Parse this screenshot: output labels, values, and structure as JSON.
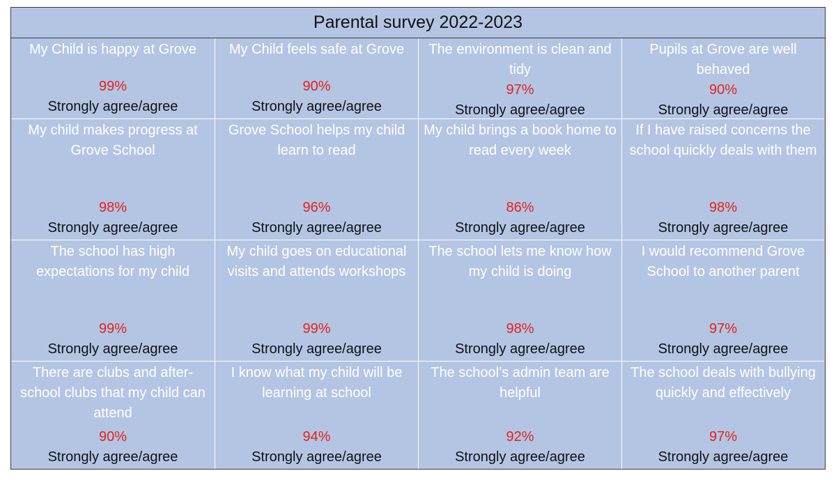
{
  "title": "Parental survey 2022-2023",
  "colors": {
    "cell_background": "#b4c5e4",
    "question_text": "#ffffff",
    "percent_text": "#e2231a",
    "answer_text": "#111111"
  },
  "items": [
    {
      "question": "My Child is happy at Grove",
      "percent": "99%",
      "answer": "Strongly agree/agree"
    },
    {
      "question": "My Child feels safe at Grove",
      "percent": "90%",
      "answer": "Strongly agree/agree"
    },
    {
      "question": "The environment is clean and tidy",
      "percent": "97%",
      "answer": "Strongly agree/agree"
    },
    {
      "question": "Pupils at Grove are well behaved",
      "percent": "90%",
      "answer": "Strongly agree/agree"
    },
    {
      "question": "My child makes progress at Grove School",
      "percent": "98%",
      "answer": "Strongly agree/agree"
    },
    {
      "question": "Grove School helps my child learn to read",
      "percent": "96%",
      "answer": "Strongly agree/agree"
    },
    {
      "question": "My child brings a book home to read every week",
      "percent": "86%",
      "answer": "Strongly agree/agree"
    },
    {
      "question": "If I have raised concerns the school quickly deals with them",
      "percent": "98%",
      "answer": "Strongly agree/agree"
    },
    {
      "question": "The school has high expectations for my child",
      "percent": "99%",
      "answer": "Strongly agree/agree"
    },
    {
      "question": "My child goes on educational visits and attends workshops",
      "percent": "99%",
      "answer": "Strongly agree/agree"
    },
    {
      "question": "The school lets me know how my child is doing",
      "percent": "98%",
      "answer": "Strongly agree/agree"
    },
    {
      "question": "I would recommend Grove School to another parent",
      "percent": "97%",
      "answer": "Strongly agree/agree"
    },
    {
      "question": "There are clubs and after-school clubs that my child can attend",
      "percent": "90%",
      "answer": "Strongly agree/agree"
    },
    {
      "question": "I know what my child will be learning at school",
      "percent": "94%",
      "answer": "Strongly agree/agree"
    },
    {
      "question": "The school’s admin team are helpful",
      "percent": "92%",
      "answer": "Strongly agree/agree"
    },
    {
      "question": "The school deals with bullying quickly and effectively",
      "percent": "97%",
      "answer": "Strongly agree/agree"
    }
  ]
}
